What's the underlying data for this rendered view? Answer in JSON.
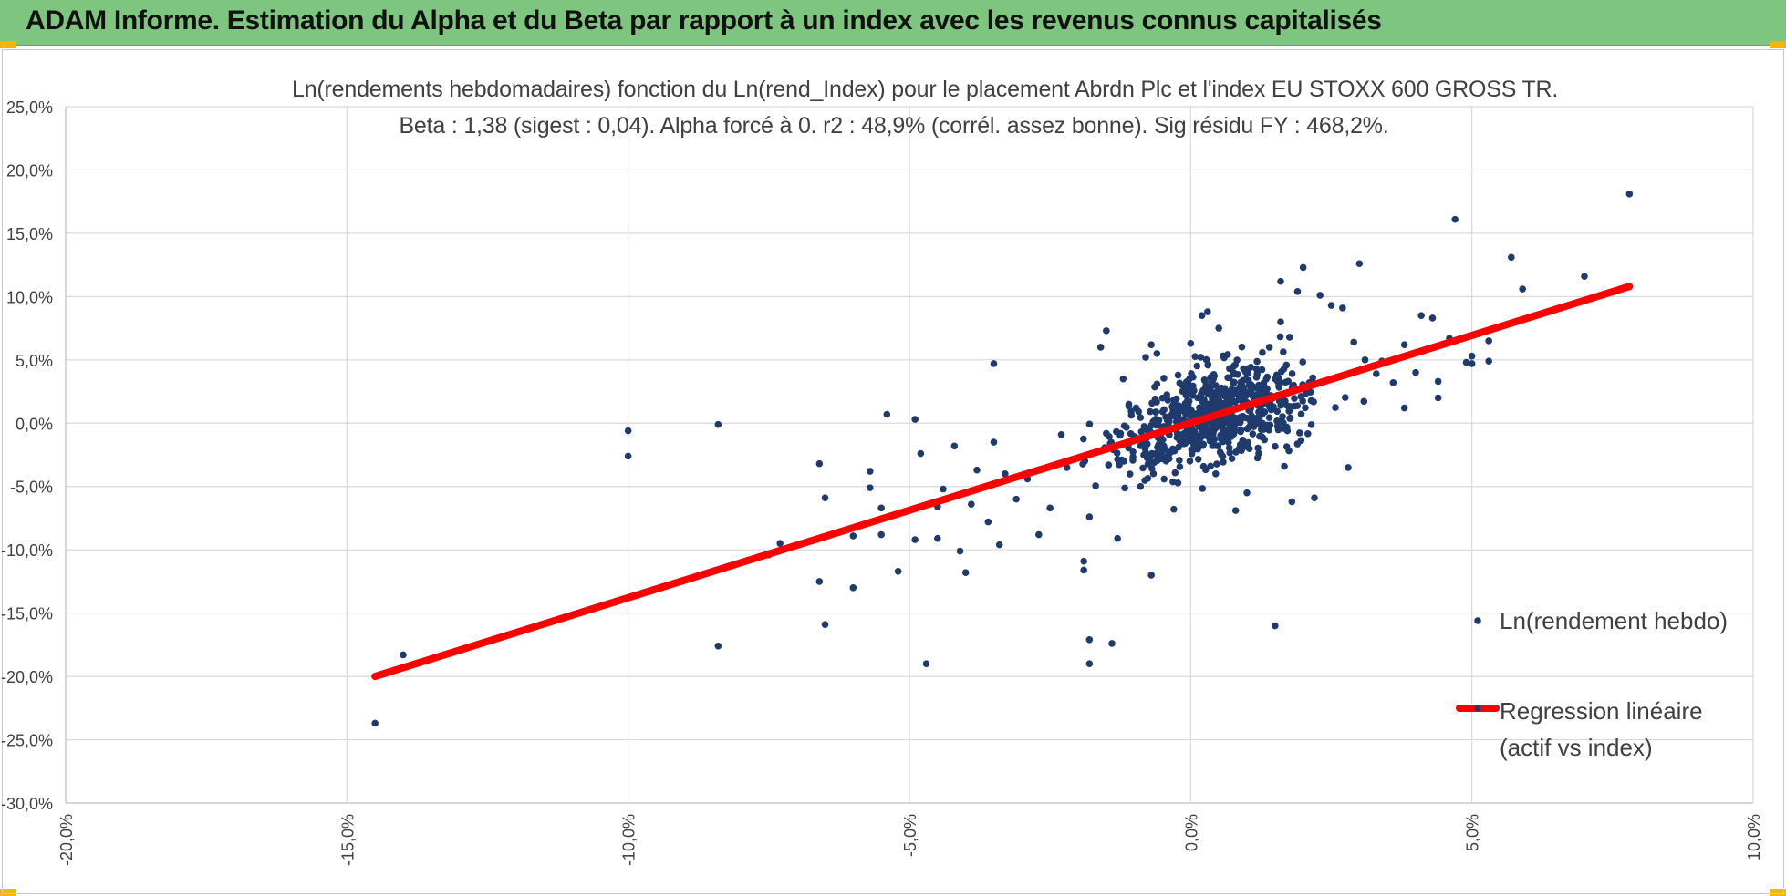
{
  "header": {
    "title": "ADAM Informe. Estimation du Alpha et du Beta par rapport à un index avec les revenus connus capitalisés"
  },
  "colors": {
    "header_bg": "#7ec67f",
    "points": "#1f3b6e",
    "regression": "#ff0000",
    "grid": "#d9d9d9",
    "accent_corner": "#f2b705"
  },
  "chart_data": {
    "type": "scatter",
    "title": "Ln(rendements hebdomadaires) fonction du Ln(rend_Index) pour le placement Abrdn Plc et l'index EU STOXX 600 GROSS TR.",
    "subtitle": "Beta : 1,38 (sigest : 0,04). Alpha forcé à 0. r2 : 48,9% (corrél. assez bonne). Sig résidu FY : 468,2%.",
    "xlim": [
      -0.2,
      0.1
    ],
    "ylim": [
      -0.3,
      0.25
    ],
    "x_ticks": [
      "-20,0%",
      "-15,0%",
      "-10,0%",
      "-5,0%",
      "0,0%",
      "5,0%",
      "10,0%"
    ],
    "y_ticks": [
      "25,0%",
      "20,0%",
      "15,0%",
      "10,0%",
      "5,0%",
      "0,0%",
      "-5,0%",
      "-10,0%",
      "-15,0%",
      "-20,0%",
      "-25,0%",
      "-30,0%"
    ],
    "grid": true,
    "legend_position": "right",
    "series": [
      {
        "name": "Ln(rendement hebdo)",
        "kind": "scatter",
        "cluster_count": 700,
        "points": [
          [
            -0.145,
            -0.237
          ],
          [
            -0.14,
            -0.183
          ],
          [
            -0.1,
            -0.006
          ],
          [
            -0.1,
            -0.026
          ],
          [
            -0.084,
            -0.001
          ],
          [
            -0.084,
            -0.176
          ],
          [
            -0.075,
            -0.104
          ],
          [
            -0.073,
            -0.095
          ],
          [
            -0.066,
            -0.125
          ],
          [
            -0.065,
            -0.059
          ],
          [
            -0.066,
            -0.032
          ],
          [
            -0.065,
            -0.159
          ],
          [
            -0.06,
            -0.13
          ],
          [
            -0.06,
            -0.089
          ],
          [
            -0.057,
            -0.051
          ],
          [
            -0.057,
            -0.038
          ],
          [
            -0.055,
            -0.088
          ],
          [
            -0.054,
            0.007
          ],
          [
            -0.055,
            -0.067
          ],
          [
            -0.052,
            -0.117
          ],
          [
            -0.049,
            0.003
          ],
          [
            -0.049,
            -0.092
          ],
          [
            -0.048,
            -0.024
          ],
          [
            -0.047,
            -0.19
          ],
          [
            -0.045,
            -0.091
          ],
          [
            -0.045,
            -0.066
          ],
          [
            -0.044,
            -0.052
          ],
          [
            -0.042,
            -0.018
          ],
          [
            -0.041,
            -0.101
          ],
          [
            -0.04,
            -0.118
          ],
          [
            -0.039,
            -0.064
          ],
          [
            -0.038,
            -0.037
          ],
          [
            -0.036,
            -0.078
          ],
          [
            -0.035,
            0.047
          ],
          [
            -0.035,
            -0.015
          ],
          [
            -0.034,
            -0.096
          ],
          [
            -0.033,
            -0.04
          ],
          [
            -0.031,
            -0.06
          ],
          [
            -0.029,
            -0.044
          ],
          [
            -0.027,
            -0.088
          ],
          [
            -0.025,
            -0.067
          ],
          [
            -0.023,
            -0.009
          ],
          [
            -0.022,
            -0.035
          ],
          [
            -0.019,
            -0.109
          ],
          [
            -0.019,
            -0.116
          ],
          [
            -0.018,
            -0.171
          ],
          [
            -0.018,
            -0.19
          ],
          [
            -0.018,
            -0.074
          ],
          [
            -0.016,
            0.06
          ],
          [
            -0.015,
            0.073
          ],
          [
            -0.014,
            -0.174
          ],
          [
            -0.013,
            -0.091
          ],
          [
            -0.012,
            0.035
          ],
          [
            -0.011,
            0.015
          ],
          [
            -0.008,
            0.052
          ],
          [
            -0.007,
            -0.12
          ],
          [
            -0.007,
            0.062
          ],
          [
            -0.006,
            0.055
          ],
          [
            -0.004,
            -0.028
          ],
          [
            -0.003,
            -0.068
          ],
          [
            0.0,
            0.063
          ],
          [
            0.002,
            0.085
          ],
          [
            0.003,
            0.088
          ],
          [
            0.005,
            0.075
          ],
          [
            0.008,
            -0.069
          ],
          [
            0.01,
            -0.055
          ],
          [
            0.014,
            0.06
          ],
          [
            0.015,
            -0.16
          ],
          [
            0.016,
            0.08
          ],
          [
            0.016,
            0.112
          ],
          [
            0.018,
            -0.062
          ],
          [
            0.019,
            0.104
          ],
          [
            0.02,
            0.123
          ],
          [
            0.022,
            -0.059
          ],
          [
            0.023,
            0.101
          ],
          [
            0.025,
            0.093
          ],
          [
            0.027,
            0.091
          ],
          [
            0.028,
            -0.035
          ],
          [
            0.029,
            0.064
          ],
          [
            0.03,
            0.126
          ],
          [
            0.031,
            0.05
          ],
          [
            0.033,
            0.039
          ],
          [
            0.034,
            0.049
          ],
          [
            0.036,
            0.032
          ],
          [
            0.038,
            0.012
          ],
          [
            0.038,
            0.062
          ],
          [
            0.04,
            0.04
          ],
          [
            0.041,
            0.085
          ],
          [
            0.043,
            0.083
          ],
          [
            0.044,
            0.033
          ],
          [
            0.044,
            0.02
          ],
          [
            0.046,
            0.067
          ],
          [
            0.047,
            0.161
          ],
          [
            0.049,
            0.048
          ],
          [
            0.05,
            0.047
          ],
          [
            0.05,
            0.053
          ],
          [
            0.053,
            0.065
          ],
          [
            0.053,
            0.049
          ],
          [
            0.057,
            0.131
          ],
          [
            0.059,
            0.106
          ],
          [
            0.07,
            0.116
          ],
          [
            0.078,
            0.181
          ]
        ]
      },
      {
        "name": "Regression linéaire (actif vs index)",
        "kind": "line",
        "x": [
          -0.145,
          0.078
        ],
        "y": [
          -0.2,
          0.108
        ]
      }
    ]
  },
  "legend": {
    "scatter_label": "Ln(rendement hebdo)",
    "line_label": "Regression linéaire\n(actif vs index)"
  }
}
